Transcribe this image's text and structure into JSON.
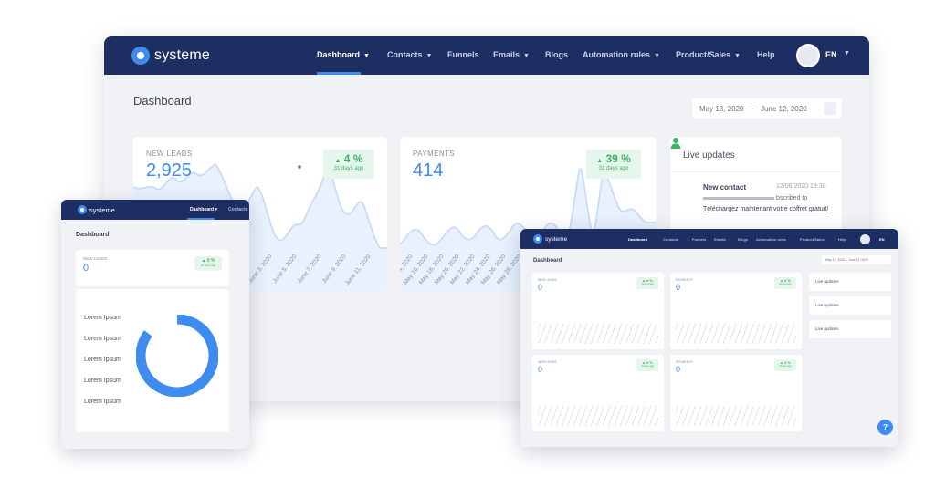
{
  "main": {
    "brand": "systeme",
    "menu": [
      {
        "label": "Dashboard",
        "chevron": true,
        "active": true
      },
      {
        "label": "Contacts",
        "chevron": true
      },
      {
        "label": "Funnels",
        "chevron": false
      },
      {
        "label": "Emails",
        "chevron": true
      },
      {
        "label": "Blogs",
        "chevron": false
      },
      {
        "label": "Automation rules",
        "chevron": true
      },
      {
        "label": "Product/Sales",
        "chevron": true
      },
      {
        "label": "Help",
        "chevron": false
      }
    ],
    "language": "EN",
    "page_title": "Dashboard",
    "date_range": {
      "start": "May 13, 2020",
      "separator": "–",
      "end": "June 12, 2020"
    },
    "leads_card": {
      "label": "NEW LEADS",
      "value": "2,925",
      "change": "4 %",
      "change_note": "31 days ago",
      "x_ticks": [
        "June 7, 2020",
        "June 8, 2020",
        "May 30, 2020",
        "June 1, 2020",
        "June 3, 2020",
        "June 5, 2020",
        "June 7, 2020",
        "June 9, 2020",
        "June 11, 2020"
      ]
    },
    "payments_card": {
      "label": "PAYMENTS",
      "value": "414",
      "change": "39 %",
      "change_note": "31 days ago",
      "x_ticks": [
        "May 14, 2020",
        "May 16, 2020",
        "May 18, 2020",
        "May 20, 2020",
        "May 22, 2020",
        "May 24, 2020",
        "May 26, 2020",
        "May 28, 2020"
      ]
    },
    "live_updates": {
      "title": "Live updates",
      "event": "New contact",
      "date": "12/06/2020 19:30",
      "line1_suffix": "bscribed to",
      "link": "Téléchargez maintenant votre coffret gratuit!"
    }
  },
  "tablet": {
    "brand": "systeme",
    "menu_active": "Dashboard",
    "menu_next": "Contacts",
    "page_title": "Dashboard",
    "card": {
      "label": "NEW LEADS",
      "value": "0",
      "change": "0 %",
      "change_note": "31 days ago"
    },
    "legend": [
      "Lorem Ipsum",
      "Lorem Ipsum",
      "Lorem Ipsum",
      "Lorem Ipsum",
      "Lorem Ipsum"
    ],
    "colors": {
      "donut": "#3f8cf0",
      "accent": "#3f8cf0",
      "nav": "#1d2e63"
    }
  },
  "laptop": {
    "brand": "systeme",
    "menu": [
      "Dashboard",
      "Contacts",
      "Funnels",
      "Emails",
      "Blogs",
      "Automation rules",
      "Product/Sales",
      "Help"
    ],
    "language": "EN",
    "page_title": "Dashboard",
    "date_range": "May 17, 2020  –  June 11, 2020",
    "cards": [
      {
        "label": "NEW LEADS",
        "value": "0",
        "change": "0 %",
        "change_note": "31 days ago"
      },
      {
        "label": "PAYMENTS",
        "value": "0",
        "change": "0 %",
        "change_note": "31 days ago"
      },
      {
        "label": "NEW LEADS",
        "value": "0",
        "change": "0 %",
        "change_note": "31 days ago"
      },
      {
        "label": "PAYMENTS",
        "value": "0",
        "change": "0 %",
        "change_note": "31 days ago"
      }
    ],
    "live_updates": [
      "Live updates",
      "Live updates",
      "Live updates"
    ],
    "help": "?"
  }
}
